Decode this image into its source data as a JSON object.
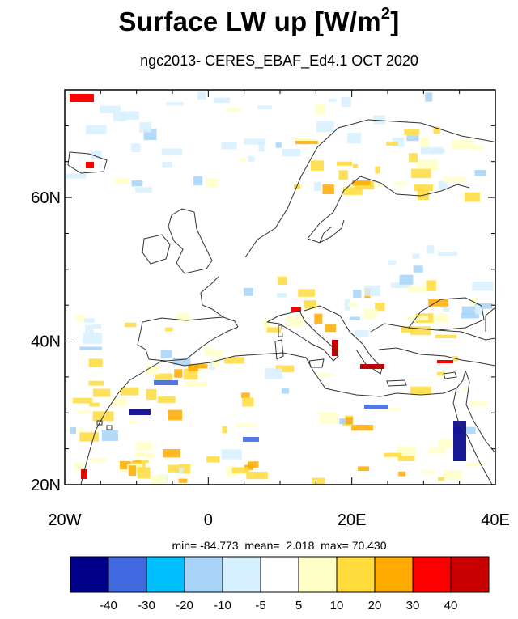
{
  "title": {
    "main": "Surface LW up [W/m",
    "sup": "2",
    "close": "]"
  },
  "subtitle": "ngc2013- CERES_EBAF_Ed4.1 OCT 2020",
  "map": {
    "projection": "cylindrical equidistant",
    "lon_range": [
      -20,
      40
    ],
    "lat_range": [
      20,
      75
    ],
    "x_ticks": [
      {
        "lon": -20,
        "label": "20W"
      },
      {
        "lon": 0,
        "label": "0"
      },
      {
        "lon": 20,
        "label": "20E"
      },
      {
        "lon": 40,
        "label": "40E"
      }
    ],
    "y_ticks": [
      {
        "lat": 60,
        "label": "60N"
      },
      {
        "lat": 40,
        "label": "40N"
      },
      {
        "lat": 20,
        "label": "20N"
      }
    ],
    "field": "difference (model minus observation)"
  },
  "stats": {
    "min_label": "min=",
    "min": "-84.773",
    "mean_label": "mean=",
    "mean": "2.018",
    "max_label": "max=",
    "max": "70.430"
  },
  "colorbar": {
    "colors": [
      "#00008b",
      "#4169e1",
      "#00bfff",
      "#a6d3f7",
      "#d6f0ff",
      "#ffffff",
      "#ffffc8",
      "#ffdc3c",
      "#ffaa00",
      "#ff0000",
      "#c80000"
    ],
    "labels": [
      "-40",
      "-30",
      "-20",
      "-10",
      "-5",
      "5",
      "10",
      "20",
      "30",
      "40"
    ]
  }
}
